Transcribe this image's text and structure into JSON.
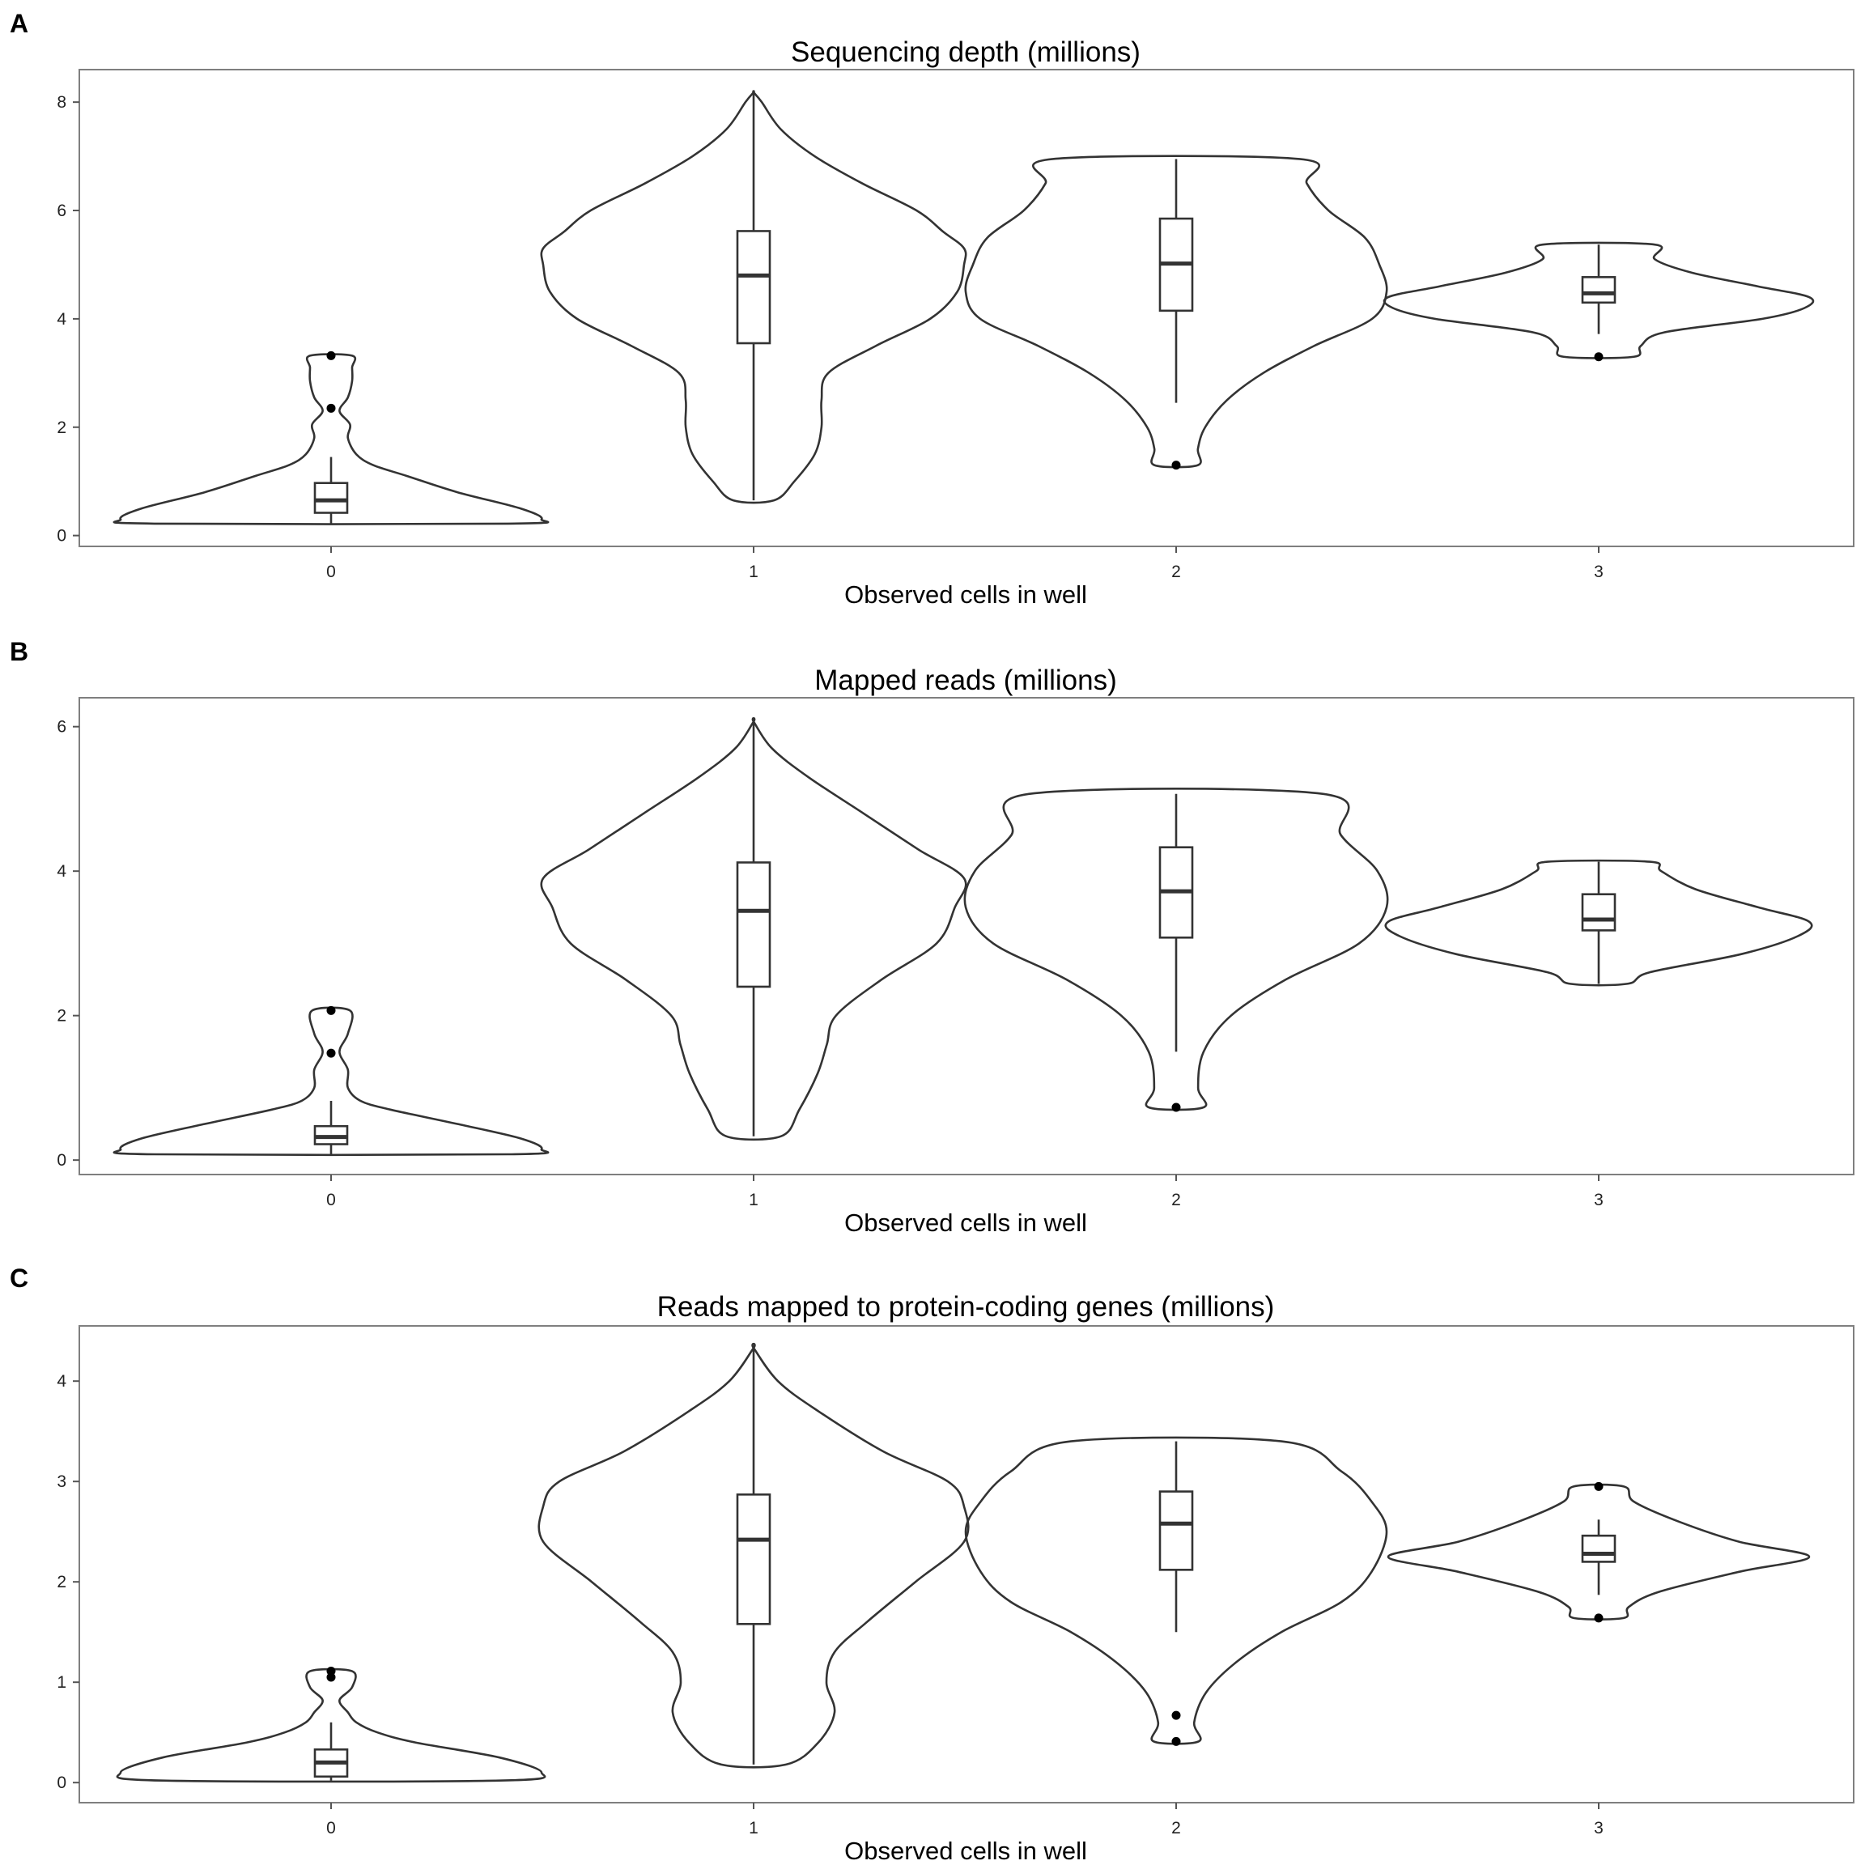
{
  "chart_data": [
    {
      "panel": "A",
      "type": "violin",
      "title": "Sequencing depth (millions)",
      "xlabel": "Observed cells in well",
      "categories": [
        "0",
        "1",
        "2",
        "3"
      ],
      "ylim": [
        -0.2,
        8.6
      ],
      "yticks": [
        0,
        2,
        4,
        6,
        8
      ],
      "groups": [
        {
          "category": "0",
          "min": 0.22,
          "max": 3.32,
          "box": {
            "q1": 0.42,
            "median": 0.65,
            "q3": 0.97,
            "whisker_low": 0.22,
            "whisker_high": 1.45
          },
          "outliers": [
            2.35,
            3.32
          ],
          "density": [
            [
              0.22,
              0.42
            ],
            [
              0.3,
              0.5
            ],
            [
              0.5,
              0.45
            ],
            [
              0.8,
              0.3
            ],
            [
              1.1,
              0.18
            ],
            [
              1.3,
              0.1
            ],
            [
              1.5,
              0.06
            ],
            [
              1.8,
              0.04
            ],
            [
              2.05,
              0.045
            ],
            [
              2.3,
              0.02
            ],
            [
              2.55,
              0.04
            ],
            [
              2.85,
              0.05
            ],
            [
              3.1,
              0.05
            ],
            [
              3.32,
              0.05
            ]
          ]
        },
        {
          "category": "1",
          "min": 0.65,
          "max": 8.18,
          "box": {
            "q1": 3.55,
            "median": 4.8,
            "q3": 5.62,
            "whisker_low": 0.65,
            "whisker_high": 8.18
          },
          "outliers": [],
          "density": [
            [
              0.65,
              0.015
            ],
            [
              1.0,
              0.03
            ],
            [
              1.5,
              0.045
            ],
            [
              2.0,
              0.05
            ],
            [
              2.5,
              0.05
            ],
            [
              3.0,
              0.055
            ],
            [
              3.5,
              0.09
            ],
            [
              4.0,
              0.13
            ],
            [
              4.5,
              0.15
            ],
            [
              5.0,
              0.155
            ],
            [
              5.3,
              0.155
            ],
            [
              5.6,
              0.14
            ],
            [
              6.0,
              0.12
            ],
            [
              6.5,
              0.08
            ],
            [
              7.0,
              0.045
            ],
            [
              7.5,
              0.02
            ],
            [
              8.0,
              0.006
            ],
            [
              8.18,
              0.0
            ]
          ]
        },
        {
          "category": "2",
          "min": 1.3,
          "max": 6.95,
          "box": {
            "q1": 4.15,
            "median": 5.02,
            "q3": 5.85,
            "whisker_low": 2.45,
            "whisker_high": 6.95
          },
          "outliers": [
            1.3
          ],
          "density": [
            [
              1.3,
              0.015
            ],
            [
              1.6,
              0.015
            ],
            [
              2.0,
              0.02
            ],
            [
              2.5,
              0.035
            ],
            [
              3.0,
              0.06
            ],
            [
              3.5,
              0.095
            ],
            [
              4.0,
              0.135
            ],
            [
              4.5,
              0.145
            ],
            [
              5.0,
              0.14
            ],
            [
              5.5,
              0.13
            ],
            [
              6.0,
              0.105
            ],
            [
              6.5,
              0.09
            ],
            [
              6.95,
              0.085
            ]
          ]
        },
        {
          "category": "3",
          "min": 3.3,
          "max": 5.37,
          "box": {
            "q1": 4.3,
            "median": 4.47,
            "q3": 4.77,
            "whisker_low": 3.72,
            "whisker_high": 5.37
          },
          "outliers": [
            3.3
          ],
          "density": [
            [
              3.3,
              0.075
            ],
            [
              3.5,
              0.09
            ],
            [
              3.75,
              0.14
            ],
            [
              4.0,
              0.35
            ],
            [
              4.2,
              0.44
            ],
            [
              4.4,
              0.45
            ],
            [
              4.6,
              0.34
            ],
            [
              4.85,
              0.2
            ],
            [
              5.1,
              0.12
            ],
            [
              5.37,
              0.12
            ]
          ]
        }
      ]
    },
    {
      "panel": "B",
      "type": "violin",
      "title": "Mapped reads (millions)",
      "xlabel": "Observed cells in well",
      "categories": [
        "0",
        "1",
        "2",
        "3"
      ],
      "ylim": [
        -0.2,
        6.4
      ],
      "yticks": [
        0,
        2,
        4,
        6
      ],
      "groups": [
        {
          "category": "0",
          "min": 0.08,
          "max": 2.07,
          "box": {
            "q1": 0.22,
            "median": 0.32,
            "q3": 0.47,
            "whisker_low": 0.08,
            "whisker_high": 0.82
          },
          "outliers": [
            1.48,
            2.07
          ],
          "density": [
            [
              0.08,
              0.42
            ],
            [
              0.15,
              0.5
            ],
            [
              0.3,
              0.45
            ],
            [
              0.5,
              0.3
            ],
            [
              0.7,
              0.14
            ],
            [
              0.82,
              0.07
            ],
            [
              1.0,
              0.04
            ],
            [
              1.25,
              0.04
            ],
            [
              1.5,
              0.02
            ],
            [
              1.75,
              0.04
            ],
            [
              2.07,
              0.045
            ]
          ]
        },
        {
          "category": "1",
          "min": 0.33,
          "max": 6.07,
          "box": {
            "q1": 2.4,
            "median": 3.45,
            "q3": 4.12,
            "whisker_low": 0.33,
            "whisker_high": 6.07
          },
          "outliers": [],
          "density": [
            [
              0.33,
              0.015
            ],
            [
              0.7,
              0.025
            ],
            [
              1.2,
              0.035
            ],
            [
              1.6,
              0.04
            ],
            [
              2.0,
              0.045
            ],
            [
              2.5,
              0.07
            ],
            [
              3.0,
              0.1
            ],
            [
              3.5,
              0.11
            ],
            [
              3.9,
              0.115
            ],
            [
              4.3,
              0.09
            ],
            [
              4.8,
              0.06
            ],
            [
              5.3,
              0.03
            ],
            [
              5.7,
              0.01
            ],
            [
              6.07,
              0.0
            ]
          ]
        },
        {
          "category": "2",
          "min": 0.73,
          "max": 5.07,
          "box": {
            "q1": 3.08,
            "median": 3.72,
            "q3": 4.33,
            "whisker_low": 1.5,
            "whisker_high": 5.07
          },
          "outliers": [
            0.73
          ],
          "density": [
            [
              0.73,
              0.015
            ],
            [
              1.0,
              0.012
            ],
            [
              1.5,
              0.015
            ],
            [
              2.0,
              0.03
            ],
            [
              2.5,
              0.06
            ],
            [
              3.0,
              0.1
            ],
            [
              3.5,
              0.115
            ],
            [
              4.0,
              0.11
            ],
            [
              4.5,
              0.09
            ],
            [
              5.07,
              0.08
            ]
          ]
        },
        {
          "category": "3",
          "min": 2.44,
          "max": 4.13,
          "box": {
            "q1": 3.18,
            "median": 3.33,
            "q3": 3.68,
            "whisker_low": 2.44,
            "whisker_high": 4.13
          },
          "outliers": [],
          "density": [
            [
              2.44,
              0.05
            ],
            [
              2.6,
              0.09
            ],
            [
              2.85,
              0.25
            ],
            [
              3.1,
              0.35
            ],
            [
              3.3,
              0.37
            ],
            [
              3.5,
              0.28
            ],
            [
              3.75,
              0.17
            ],
            [
              4.0,
              0.11
            ],
            [
              4.13,
              0.09
            ]
          ]
        }
      ]
    },
    {
      "panel": "C",
      "type": "violin",
      "title": "Reads mapped to protein-coding genes (millions)",
      "xlabel": "Observed cells in well",
      "categories": [
        "0",
        "1",
        "2",
        "3"
      ],
      "ylim": [
        -0.2,
        4.55
      ],
      "yticks": [
        0,
        1,
        2,
        3,
        4
      ],
      "groups": [
        {
          "category": "0",
          "min": 0.02,
          "max": 1.11,
          "box": {
            "q1": 0.06,
            "median": 0.2,
            "q3": 0.33,
            "whisker_low": 0.02,
            "whisker_high": 0.6
          },
          "outliers": [
            1.05,
            1.11
          ],
          "density": [
            [
              0.02,
              0.4
            ],
            [
              0.1,
              0.5
            ],
            [
              0.25,
              0.4
            ],
            [
              0.4,
              0.2
            ],
            [
              0.5,
              0.11
            ],
            [
              0.6,
              0.06
            ],
            [
              0.7,
              0.04
            ],
            [
              0.82,
              0.02
            ],
            [
              0.95,
              0.05
            ],
            [
              1.11,
              0.05
            ]
          ]
        },
        {
          "category": "1",
          "min": 0.18,
          "max": 4.33,
          "box": {
            "q1": 1.58,
            "median": 2.42,
            "q3": 2.87,
            "whisker_low": 0.18,
            "whisker_high": 4.33
          },
          "outliers": [],
          "density": [
            [
              0.18,
              0.02
            ],
            [
              0.4,
              0.04
            ],
            [
              0.7,
              0.05
            ],
            [
              1.0,
              0.045
            ],
            [
              1.3,
              0.05
            ],
            [
              1.6,
              0.07
            ],
            [
              2.0,
              0.1
            ],
            [
              2.4,
              0.13
            ],
            [
              2.75,
              0.13
            ],
            [
              3.0,
              0.12
            ],
            [
              3.3,
              0.08
            ],
            [
              3.7,
              0.04
            ],
            [
              4.0,
              0.015
            ],
            [
              4.33,
              0.0
            ]
          ]
        },
        {
          "category": "2",
          "min": 0.41,
          "max": 3.4,
          "box": {
            "q1": 2.12,
            "median": 2.58,
            "q3": 2.9,
            "whisker_low": 1.5,
            "whisker_high": 3.4
          },
          "outliers": [
            0.41,
            0.67
          ],
          "density": [
            [
              0.41,
              0.015
            ],
            [
              0.6,
              0.012
            ],
            [
              0.9,
              0.02
            ],
            [
              1.2,
              0.04
            ],
            [
              1.5,
              0.07
            ],
            [
              1.8,
              0.11
            ],
            [
              2.1,
              0.13
            ],
            [
              2.5,
              0.14
            ],
            [
              2.8,
              0.13
            ],
            [
              3.1,
              0.11
            ],
            [
              3.4,
              0.07
            ]
          ]
        },
        {
          "category": "3",
          "min": 1.64,
          "max": 2.95,
          "box": {
            "q1": 2.2,
            "median": 2.28,
            "q3": 2.46,
            "whisker_low": 1.87,
            "whisker_high": 2.62
          },
          "outliers": [
            1.64,
            2.95
          ],
          "density": [
            [
              1.64,
              0.05
            ],
            [
              1.75,
              0.06
            ],
            [
              1.9,
              0.12
            ],
            [
              2.1,
              0.28
            ],
            [
              2.25,
              0.42
            ],
            [
              2.4,
              0.28
            ],
            [
              2.6,
              0.16
            ],
            [
              2.8,
              0.07
            ],
            [
              2.95,
              0.05
            ]
          ]
        }
      ]
    }
  ]
}
